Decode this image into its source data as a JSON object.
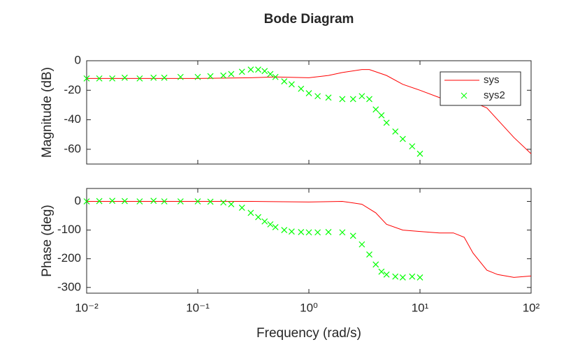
{
  "chart_data": [
    {
      "type": "line",
      "title": "Bode Diagram",
      "ylabel": "Magnitude (dB)",
      "xscale": "log",
      "xlim": [
        0.01,
        100
      ],
      "xticks": [
        0.01,
        0.1,
        1,
        10,
        100
      ],
      "ylim": [
        -70,
        0
      ],
      "yticks": [
        -60,
        -40,
        -20,
        0
      ],
      "grid": false,
      "legend": "northeast",
      "series": [
        {
          "name": "sys",
          "color": "#ff0000",
          "marker": "none",
          "x": [
            0.01,
            0.03,
            0.1,
            0.3,
            0.5,
            1,
            1.5,
            2,
            3,
            3.5,
            5,
            7,
            10,
            15,
            20,
            30,
            40,
            50,
            70,
            100
          ],
          "values": [
            -12,
            -12,
            -12,
            -11.5,
            -11,
            -11.5,
            -10,
            -8,
            -6,
            -6,
            -10,
            -16,
            -20,
            -25,
            -27,
            -28,
            -32,
            -40,
            -52,
            -63
          ]
        },
        {
          "name": "sys2",
          "color": "#00ff00",
          "marker": "x",
          "x": [
            0.01,
            0.013,
            0.017,
            0.022,
            0.03,
            0.04,
            0.05,
            0.07,
            0.1,
            0.13,
            0.17,
            0.2,
            0.25,
            0.3,
            0.35,
            0.4,
            0.45,
            0.5,
            0.6,
            0.7,
            0.85,
            1,
            1.2,
            1.5,
            2,
            2.5,
            3,
            3.5,
            4,
            4.5,
            5,
            6,
            7,
            8.5,
            10
          ],
          "values": [
            -12,
            -12,
            -12,
            -11.5,
            -12,
            -11.5,
            -11.5,
            -11,
            -11,
            -10.5,
            -10,
            -9,
            -7.5,
            -6,
            -6,
            -7,
            -9,
            -11,
            -14,
            -16,
            -19,
            -22,
            -24,
            -25,
            -26,
            -26,
            -24,
            -26,
            -33,
            -37,
            -42,
            -48,
            -53,
            -58,
            -63
          ]
        }
      ]
    },
    {
      "type": "line",
      "ylabel": "Phase (deg)",
      "xlabel": "Frequency (rad/s)",
      "xscale": "log",
      "xlim": [
        0.01,
        100
      ],
      "xticks": [
        {
          "value": 0.01,
          "label": "10⁻²"
        },
        {
          "value": 0.1,
          "label": "10⁻¹"
        },
        {
          "value": 1,
          "label": "10⁰"
        },
        {
          "value": 10,
          "label": "10¹"
        },
        {
          "value": 100,
          "label": "10²"
        }
      ],
      "ylim": [
        -320,
        45
      ],
      "yticks": [
        -300,
        -200,
        -100,
        0
      ],
      "grid": false,
      "series": [
        {
          "name": "sys",
          "color": "#ff0000",
          "marker": "none",
          "x": [
            0.01,
            0.1,
            0.3,
            1,
            2,
            3,
            4,
            5,
            7,
            10,
            15,
            20,
            25,
            30,
            40,
            50,
            70,
            100
          ],
          "values": [
            0,
            0,
            0,
            -2,
            0,
            -10,
            -40,
            -80,
            -100,
            -105,
            -110,
            -110,
            -125,
            -180,
            -240,
            -255,
            -265,
            -260
          ]
        },
        {
          "name": "sys2",
          "color": "#00ff00",
          "marker": "x",
          "x": [
            0.01,
            0.013,
            0.017,
            0.022,
            0.03,
            0.04,
            0.05,
            0.07,
            0.1,
            0.13,
            0.17,
            0.2,
            0.25,
            0.3,
            0.35,
            0.4,
            0.45,
            0.5,
            0.6,
            0.7,
            0.85,
            1,
            1.2,
            1.5,
            2,
            2.5,
            3,
            3.5,
            4,
            4.5,
            5,
            6,
            7,
            8.5,
            10
          ],
          "values": [
            0,
            1,
            2,
            1,
            0,
            2,
            0,
            0,
            0,
            -1,
            -4,
            -10,
            -22,
            -40,
            -55,
            -70,
            -80,
            -90,
            -100,
            -105,
            -107,
            -108,
            -108,
            -107,
            -108,
            -120,
            -150,
            -185,
            -220,
            -245,
            -255,
            -262,
            -265,
            -262,
            -265
          ]
        }
      ]
    }
  ]
}
